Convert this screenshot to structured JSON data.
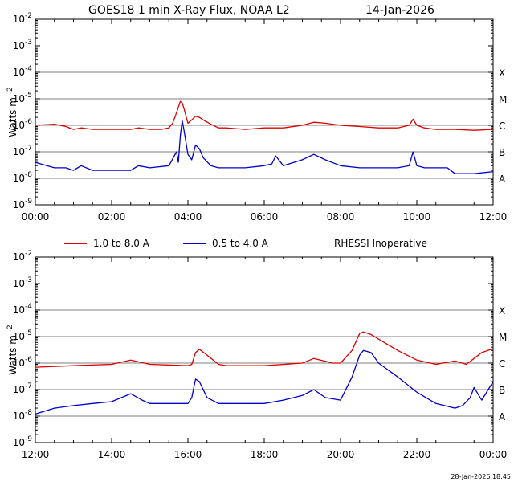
{
  "title": "GOES18 1 min  X-Ray Flux, NOAA L2",
  "date": "14-Jan-2026",
  "footer": "28-Jan-2026 18:45",
  "legend": {
    "long_label": "1.0 to 8.0 A",
    "short_label": "0.5 to 4.0 A",
    "status": "RHESSI Inoperative"
  },
  "colors": {
    "long": "#dd0000",
    "short": "#0000cc",
    "grid": "#7f7f7f"
  },
  "chart_data": [
    {
      "type": "line",
      "ylabel": "Watts m",
      "ylabel_exponent": "-2",
      "yscale": "log",
      "ylim_exponents": [
        -9,
        -2
      ],
      "y_tick_exponents": [
        -2,
        -3,
        -4,
        -5,
        -6,
        -7,
        -8,
        -9
      ],
      "x_tick_labels": [
        "00:00",
        "02:00",
        "04:00",
        "06:00",
        "08:00",
        "10:00",
        "12:00"
      ],
      "xlim_hours": [
        0,
        12
      ],
      "class_labels": [
        {
          "label": "X",
          "exponent": -4
        },
        {
          "label": "M",
          "exponent": -5
        },
        {
          "label": "C",
          "exponent": -6
        },
        {
          "label": "B",
          "exponent": -7
        },
        {
          "label": "A",
          "exponent": -8
        }
      ],
      "series": [
        {
          "name": "1.0 to 8.0 A",
          "x_hours": [
            0,
            0.5,
            0.8,
            1.0,
            1.2,
            1.5,
            2.0,
            2.5,
            2.7,
            3.0,
            3.3,
            3.5,
            3.6,
            3.7,
            3.8,
            3.85,
            3.9,
            4.0,
            4.1,
            4.2,
            4.3,
            4.4,
            4.6,
            4.8,
            5.0,
            5.5,
            6.0,
            6.5,
            7.0,
            7.3,
            7.6,
            8.0,
            8.5,
            9.0,
            9.5,
            9.8,
            9.9,
            10.0,
            10.2,
            10.5,
            11.0,
            11.5,
            12.0
          ],
          "values": [
            1e-06,
            1.1e-06,
            9e-07,
            7e-07,
            8e-07,
            7e-07,
            7e-07,
            7e-07,
            8e-07,
            7e-07,
            7e-07,
            8e-07,
            1.2e-06,
            3e-06,
            8e-06,
            7e-06,
            4e-06,
            1.2e-06,
            1.6e-06,
            2.2e-06,
            2e-06,
            1.6e-06,
            1.1e-06,
            8e-07,
            8e-07,
            7e-07,
            8e-07,
            8e-07,
            1e-06,
            1.3e-06,
            1.2e-06,
            1e-06,
            9e-07,
            8e-07,
            8e-07,
            1e-06,
            1.7e-06,
            1e-06,
            8e-07,
            7e-07,
            7e-07,
            6.5e-07,
            7e-07
          ]
        },
        {
          "name": "0.5 to 4.0 A",
          "x_hours": [
            0,
            0.3,
            0.5,
            0.8,
            1.0,
            1.2,
            1.5,
            2.0,
            2.5,
            2.7,
            3.0,
            3.5,
            3.7,
            3.75,
            3.8,
            3.85,
            3.9,
            4.0,
            4.1,
            4.2,
            4.3,
            4.4,
            4.6,
            4.8,
            5.0,
            5.5,
            6.0,
            6.2,
            6.3,
            6.5,
            7.0,
            7.3,
            7.6,
            8.0,
            8.5,
            9.0,
            9.5,
            9.8,
            9.9,
            10.0,
            10.2,
            10.5,
            10.8,
            11.0,
            11.5,
            12.0
          ],
          "values": [
            4e-08,
            3e-08,
            2.5e-08,
            2.5e-08,
            2e-08,
            3e-08,
            2e-08,
            2e-08,
            2e-08,
            3e-08,
            2.5e-08,
            3e-08,
            1e-07,
            4e-08,
            4e-07,
            1.5e-06,
            6e-07,
            8e-08,
            5e-08,
            1.8e-07,
            1.3e-07,
            6e-08,
            3e-08,
            2.5e-08,
            2.5e-08,
            2.5e-08,
            3e-08,
            3.5e-08,
            7e-08,
            3e-08,
            5e-08,
            8e-08,
            5e-08,
            3e-08,
            2.5e-08,
            2.5e-08,
            2.5e-08,
            3e-08,
            1e-07,
            3e-08,
            2.5e-08,
            2.5e-08,
            2.5e-08,
            1.5e-08,
            1.5e-08,
            1.8e-08
          ]
        }
      ]
    },
    {
      "type": "line",
      "ylabel": "Watts m",
      "ylabel_exponent": "-2",
      "yscale": "log",
      "ylim_exponents": [
        -9,
        -2
      ],
      "y_tick_exponents": [
        -2,
        -3,
        -4,
        -5,
        -6,
        -7,
        -8,
        -9
      ],
      "x_tick_labels": [
        "12:00",
        "14:00",
        "16:00",
        "18:00",
        "20:00",
        "22:00",
        "00:00"
      ],
      "xlim_hours": [
        12,
        24
      ],
      "class_labels": [
        {
          "label": "X",
          "exponent": -4
        },
        {
          "label": "M",
          "exponent": -5
        },
        {
          "label": "C",
          "exponent": -6
        },
        {
          "label": "B",
          "exponent": -7
        },
        {
          "label": "A",
          "exponent": -8
        }
      ],
      "series": [
        {
          "name": "1.0 to 8.0 A",
          "x_hours": [
            12,
            13,
            14,
            14.5,
            15,
            16,
            16.1,
            16.2,
            16.3,
            16.5,
            16.8,
            17,
            18,
            19,
            19.3,
            19.8,
            20,
            20.3,
            20.5,
            20.6,
            20.8,
            21,
            21.5,
            22,
            22.5,
            23,
            23.3,
            23.5,
            23.7,
            24
          ],
          "values": [
            7e-07,
            8e-07,
            9e-07,
            1.3e-06,
            9e-07,
            8e-07,
            9e-07,
            2.5e-06,
            3.3e-06,
            2e-06,
            9e-07,
            8e-07,
            8e-07,
            1e-06,
            1.5e-06,
            1e-06,
            1e-06,
            3e-06,
            1.3e-05,
            1.5e-05,
            1.2e-05,
            8e-06,
            3e-06,
            1.3e-06,
            9e-07,
            1.2e-06,
            9e-07,
            1.5e-06,
            2.5e-06,
            3.5e-06
          ]
        },
        {
          "name": "0.5 to 4.0 A",
          "x_hours": [
            12,
            12.5,
            13,
            13.5,
            14,
            14.5,
            14.8,
            15,
            15.5,
            16,
            16.1,
            16.2,
            16.3,
            16.5,
            16.8,
            17,
            18,
            18.5,
            19,
            19.3,
            19.6,
            20,
            20.3,
            20.5,
            20.6,
            20.8,
            21,
            21.5,
            22,
            22.5,
            23,
            23.2,
            23.4,
            23.5,
            23.7,
            24
          ],
          "values": [
            1.2e-08,
            2e-08,
            2.5e-08,
            3e-08,
            3.5e-08,
            7e-08,
            4e-08,
            3e-08,
            3e-08,
            3e-08,
            5e-08,
            2.5e-07,
            2e-07,
            5e-08,
            3e-08,
            3e-08,
            3e-08,
            4e-08,
            6e-08,
            1e-07,
            5e-08,
            4e-08,
            3e-07,
            2e-06,
            3e-06,
            2.5e-06,
            1e-06,
            3e-07,
            8e-08,
            3e-08,
            2e-08,
            2.5e-08,
            5e-08,
            1.2e-07,
            4e-08,
            2e-07
          ]
        }
      ]
    }
  ]
}
